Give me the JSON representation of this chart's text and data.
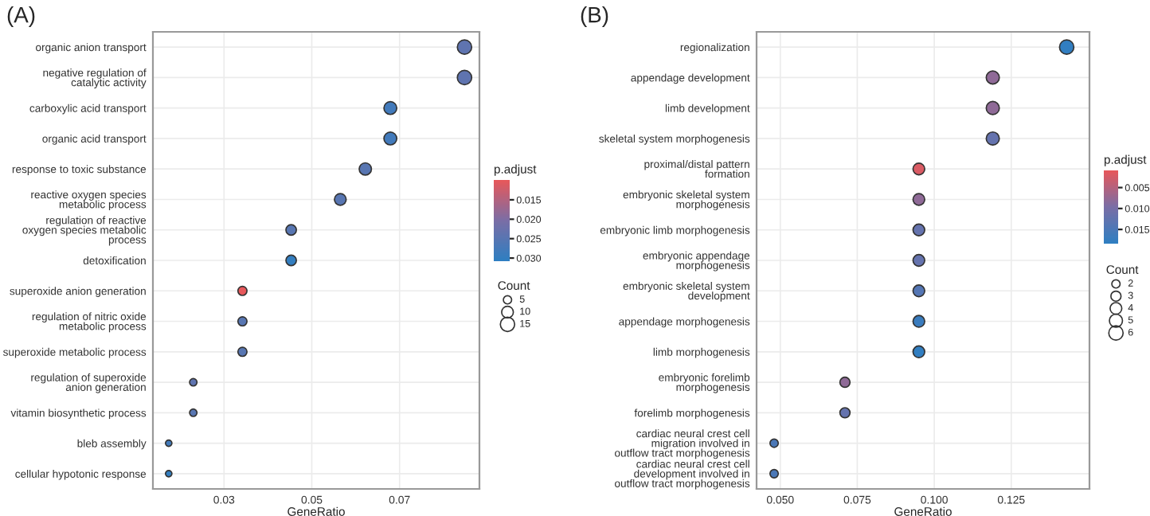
{
  "chart_data": [
    {
      "type": "scatter",
      "title": "(A)",
      "xlabel": "GeneRatio",
      "orientation": "horizontal",
      "grid": true,
      "legend_title": "Count",
      "clabel": "p.adjust",
      "categories": [
        "organic anion transport",
        "negative regulation of\ncatalytic activity",
        "carboxylic acid transport",
        "organic acid transport",
        "response to toxic substance",
        "reactive oxygen species\nmetabolic process",
        "regulation of reactive\noxygen species metabolic\nprocess",
        "detoxification",
        "superoxide anion generation",
        "regulation of nitric oxide\nmetabolic process",
        "superoxide metabolic process",
        "regulation of superoxide\nanion generation",
        "vitamin biosynthetic process",
        "bleb assembly",
        "cellular hypotonic response"
      ],
      "values": [
        0.0848,
        0.0848,
        0.0679,
        0.0679,
        0.0622,
        0.0565,
        0.0453,
        0.0453,
        0.0342,
        0.0342,
        0.0342,
        0.023,
        0.023,
        0.0174,
        0.0174
      ],
      "sizes": [
        15,
        15,
        12,
        12,
        11,
        10,
        8,
        8,
        6,
        6,
        6,
        4,
        4,
        3,
        3
      ],
      "size_legend": [
        5,
        10,
        15
      ],
      "cvalues": [
        0.024,
        0.024,
        0.028,
        0.028,
        0.025,
        0.025,
        0.025,
        0.03,
        0.01,
        0.025,
        0.025,
        0.024,
        0.025,
        0.028,
        0.03
      ],
      "clim": [
        0.0099,
        0.0308
      ],
      "cticks": [
        0.015,
        {
          "value": 0.02,
          "label": "0.020"
        },
        0.025,
        {
          "value": 0.03,
          "label": "0.030"
        }
      ],
      "xlim": [
        0.0138,
        0.0882
      ],
      "xticks": [
        0.03,
        0.05,
        0.07
      ]
    },
    {
      "type": "scatter",
      "title": "(B)",
      "xlabel": "GeneRatio",
      "orientation": "horizontal",
      "grid": true,
      "legend_title": "Count",
      "clabel": "p.adjust",
      "categories": [
        "regionalization",
        "appendage development",
        "limb development",
        "skeletal system morphogenesis",
        "proximal/distal pattern\nformation",
        "embryonic skeletal system\nmorphogenesis",
        "embryonic limb morphogenesis",
        "embryonic appendage\nmorphogenesis",
        "embryonic skeletal system\ndevelopment",
        "appendage morphogenesis",
        "limb morphogenesis",
        "embryonic forelimb\nmorphogenesis",
        "forelimb morphogenesis",
        "cardiac neural crest cell\nmigration involved in\noutflow tract morphogenesis",
        "cardiac neural crest cell\ndevelopment involved in\noutflow tract morphogenesis"
      ],
      "values": [
        0.143,
        0.119,
        0.119,
        0.119,
        0.095,
        0.095,
        0.095,
        0.095,
        0.095,
        0.095,
        0.095,
        0.071,
        0.071,
        0.048,
        0.048
      ],
      "sizes": [
        6,
        5,
        5,
        5,
        4,
        4,
        4,
        4,
        4,
        4,
        4,
        3,
        3,
        2,
        2
      ],
      "size_legend": [
        2,
        3,
        4,
        5,
        6
      ],
      "cvalues": [
        0.018,
        0.008,
        0.008,
        0.012,
        0.002,
        0.008,
        0.012,
        0.012,
        0.014,
        0.017,
        0.018,
        0.008,
        0.012,
        0.015,
        0.015
      ],
      "clim": [
        0.0009,
        0.0184
      ],
      "cticks": [
        0.005,
        {
          "value": 0.01,
          "label": "0.010"
        },
        0.015
      ],
      "xlim": [
        0.0423,
        0.1504
      ],
      "xticks": [
        {
          "value": 0.05,
          "label": "0.050"
        },
        0.075,
        {
          "value": 0.1,
          "label": "0.100"
        },
        0.125
      ]
    }
  ]
}
